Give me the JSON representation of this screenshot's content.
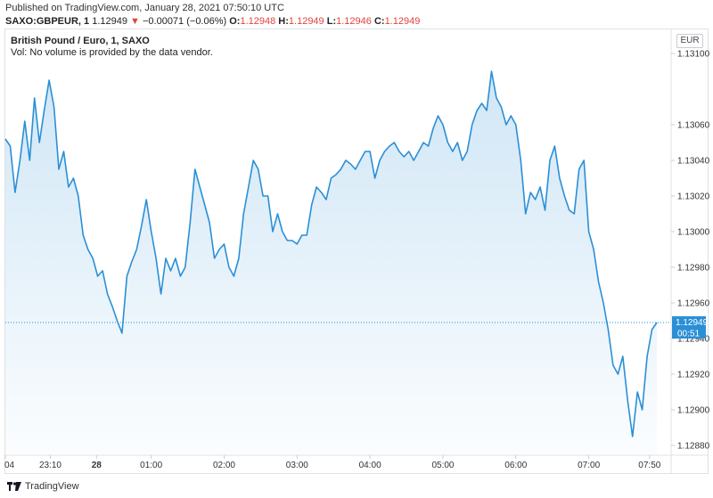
{
  "header": {
    "published": "Published on TradingView.com, January 28, 2021 07:50:10 UTC",
    "symbol": "SAXO:GBPEUR, 1",
    "last": "1.12949",
    "change": "−0.00071 (−0.06%)",
    "o_label": "O:",
    "o_value": "1.12948",
    "h_label": "H:",
    "h_value": "1.12949",
    "l_label": "L:",
    "l_value": "1.12946",
    "c_label": "C:",
    "c_value": "1.12949"
  },
  "legend": {
    "title": "British Pound / Euro, 1, SAXO",
    "volume_note": "Vol: No volume is provided by the data vendor."
  },
  "currency_button": "EUR",
  "price_tag": {
    "value": "1.12949",
    "countdown": "00:51"
  },
  "footer": {
    "brand": "TradingView"
  },
  "colors": {
    "line": "#2b8fd6",
    "tag": "#2b8fd6",
    "down": "#e0443c"
  },
  "chart_data": {
    "type": "area",
    "series_color": "#2b8fd6",
    "ylim": [
      1.12875,
      1.1311
    ],
    "yticks": [
      "1.13100",
      "1.13060",
      "1.13040",
      "1.13020",
      "1.13000",
      "1.12980",
      "1.12960",
      "1.12940",
      "1.12920",
      "1.12900",
      "1.12880"
    ],
    "ytick_values": [
      1.131,
      1.1306,
      1.1304,
      1.1302,
      1.13,
      1.1298,
      1.1296,
      1.1294,
      1.1292,
      1.129,
      1.1288
    ],
    "xticks": [
      {
        "label": "04",
        "t": 0
      },
      {
        "label": "23:10",
        "t": 37
      },
      {
        "label": "28",
        "t": 75
      },
      {
        "label": "01:00",
        "t": 120
      },
      {
        "label": "02:00",
        "t": 180
      },
      {
        "label": "03:00",
        "t": 240
      },
      {
        "label": "04:00",
        "t": 300
      },
      {
        "label": "05:00",
        "t": 360
      },
      {
        "label": "06:00",
        "t": 420
      },
      {
        "label": "07:00",
        "t": 480
      },
      {
        "label": "07:50",
        "t": 530
      }
    ],
    "xlim": [
      0,
      536
    ],
    "points": [
      [
        0,
        1.13052
      ],
      [
        4,
        1.13048
      ],
      [
        8,
        1.13022
      ],
      [
        12,
        1.1304
      ],
      [
        16,
        1.13062
      ],
      [
        20,
        1.1304
      ],
      [
        24,
        1.13075
      ],
      [
        28,
        1.1305
      ],
      [
        32,
        1.13068
      ],
      [
        36,
        1.13085
      ],
      [
        40,
        1.1307
      ],
      [
        44,
        1.13035
      ],
      [
        48,
        1.13045
      ],
      [
        52,
        1.13025
      ],
      [
        56,
        1.1303
      ],
      [
        60,
        1.1302
      ],
      [
        64,
        1.12998
      ],
      [
        68,
        1.1299
      ],
      [
        72,
        1.12985
      ],
      [
        76,
        1.12975
      ],
      [
        80,
        1.12978
      ],
      [
        84,
        1.12965
      ],
      [
        88,
        1.12958
      ],
      [
        92,
        1.1295
      ],
      [
        96,
        1.12943
      ],
      [
        100,
        1.12975
      ],
      [
        104,
        1.12983
      ],
      [
        108,
        1.1299
      ],
      [
        112,
        1.13003
      ],
      [
        116,
        1.13018
      ],
      [
        120,
        1.13
      ],
      [
        124,
        1.12985
      ],
      [
        128,
        1.12965
      ],
      [
        132,
        1.12985
      ],
      [
        136,
        1.12978
      ],
      [
        140,
        1.12985
      ],
      [
        144,
        1.12975
      ],
      [
        148,
        1.1298
      ],
      [
        152,
        1.13005
      ],
      [
        156,
        1.13035
      ],
      [
        160,
        1.13025
      ],
      [
        164,
        1.13015
      ],
      [
        168,
        1.13005
      ],
      [
        172,
        1.12985
      ],
      [
        176,
        1.1299
      ],
      [
        180,
        1.12993
      ],
      [
        184,
        1.1298
      ],
      [
        188,
        1.12975
      ],
      [
        192,
        1.12985
      ],
      [
        196,
        1.1301
      ],
      [
        200,
        1.13025
      ],
      [
        204,
        1.1304
      ],
      [
        208,
        1.13035
      ],
      [
        212,
        1.1302
      ],
      [
        216,
        1.1302
      ],
      [
        220,
        1.13
      ],
      [
        224,
        1.1301
      ],
      [
        228,
        1.13
      ],
      [
        232,
        1.12995
      ],
      [
        236,
        1.12995
      ],
      [
        240,
        1.12993
      ],
      [
        244,
        1.12998
      ],
      [
        248,
        1.12998
      ],
      [
        252,
        1.13015
      ],
      [
        256,
        1.13025
      ],
      [
        260,
        1.13022
      ],
      [
        264,
        1.13018
      ],
      [
        268,
        1.1303
      ],
      [
        272,
        1.13032
      ],
      [
        276,
        1.13035
      ],
      [
        280,
        1.1304
      ],
      [
        284,
        1.13038
      ],
      [
        288,
        1.13035
      ],
      [
        292,
        1.1304
      ],
      [
        296,
        1.13045
      ],
      [
        300,
        1.13045
      ],
      [
        304,
        1.1303
      ],
      [
        308,
        1.1304
      ],
      [
        312,
        1.13045
      ],
      [
        316,
        1.13048
      ],
      [
        320,
        1.1305
      ],
      [
        324,
        1.13045
      ],
      [
        328,
        1.13042
      ],
      [
        332,
        1.13045
      ],
      [
        336,
        1.1304
      ],
      [
        340,
        1.13045
      ],
      [
        344,
        1.1305
      ],
      [
        348,
        1.13048
      ],
      [
        352,
        1.13058
      ],
      [
        356,
        1.13065
      ],
      [
        360,
        1.1306
      ],
      [
        364,
        1.1305
      ],
      [
        368,
        1.13045
      ],
      [
        372,
        1.1305
      ],
      [
        376,
        1.1304
      ],
      [
        380,
        1.13045
      ],
      [
        384,
        1.1306
      ],
      [
        388,
        1.13068
      ],
      [
        392,
        1.13072
      ],
      [
        396,
        1.13068
      ],
      [
        400,
        1.1309
      ],
      [
        404,
        1.13075
      ],
      [
        408,
        1.1307
      ],
      [
        412,
        1.1306
      ],
      [
        416,
        1.13065
      ],
      [
        420,
        1.1306
      ],
      [
        424,
        1.1304
      ],
      [
        428,
        1.1301
      ],
      [
        432,
        1.13022
      ],
      [
        436,
        1.13018
      ],
      [
        440,
        1.13025
      ],
      [
        444,
        1.13012
      ],
      [
        448,
        1.1304
      ],
      [
        452,
        1.13048
      ],
      [
        456,
        1.1303
      ],
      [
        460,
        1.1302
      ],
      [
        464,
        1.13012
      ],
      [
        468,
        1.1301
      ],
      [
        472,
        1.13035
      ],
      [
        476,
        1.1304
      ],
      [
        480,
        1.13
      ],
      [
        484,
        1.1299
      ],
      [
        488,
        1.12972
      ],
      [
        492,
        1.1296
      ],
      [
        496,
        1.12945
      ],
      [
        500,
        1.12925
      ],
      [
        504,
        1.1292
      ],
      [
        508,
        1.1293
      ],
      [
        512,
        1.12905
      ],
      [
        516,
        1.12885
      ],
      [
        520,
        1.1291
      ],
      [
        524,
        1.129
      ],
      [
        528,
        1.1293
      ],
      [
        532,
        1.12945
      ],
      [
        536,
        1.12949
      ]
    ],
    "last_value": 1.12949,
    "grid": false,
    "legend_position": "top-left"
  }
}
